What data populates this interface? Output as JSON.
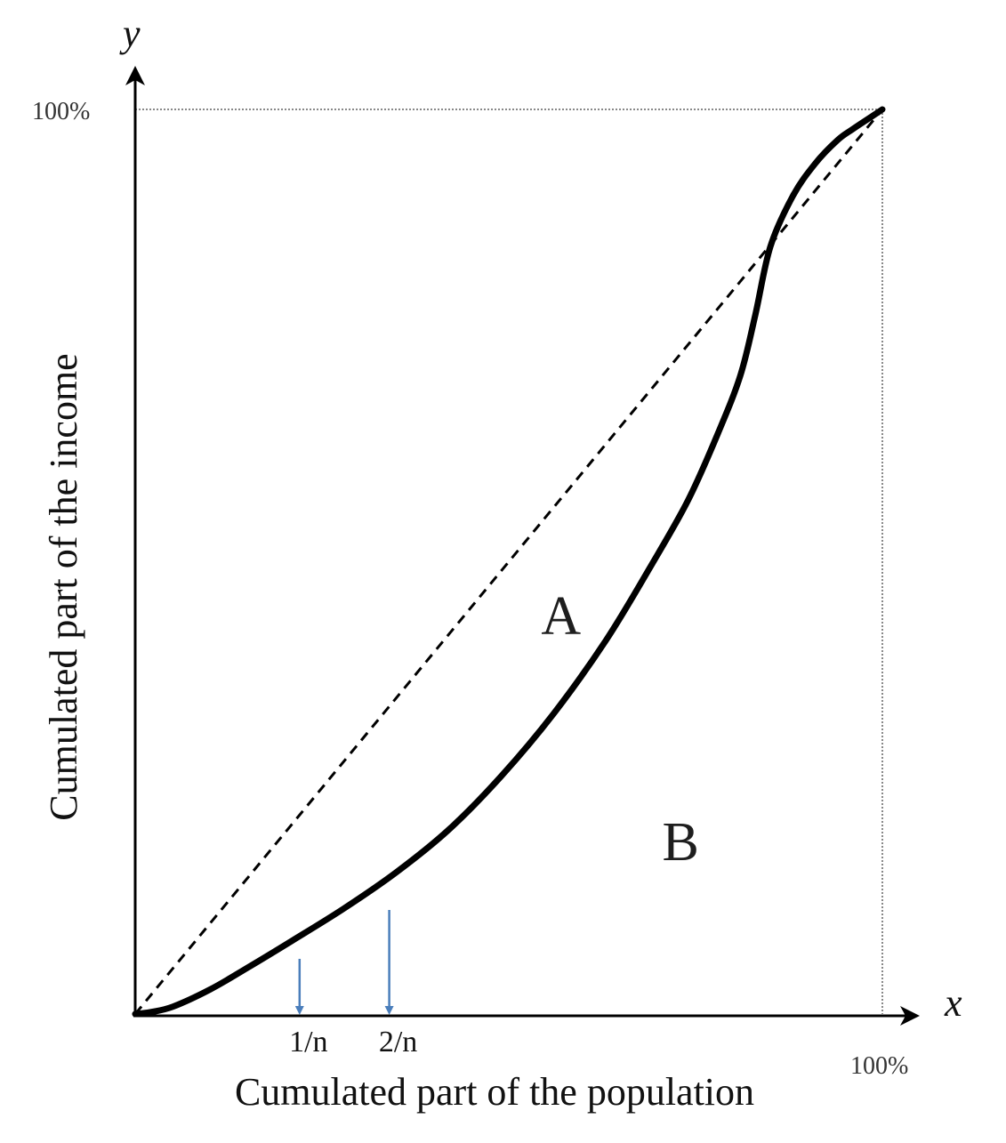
{
  "chart_data": {
    "type": "line",
    "title": "",
    "xlabel": "Cumulated part of the population",
    "ylabel": "Cumulated part of the income",
    "x_axis_symbol": "x",
    "y_axis_symbol": "y",
    "xlim": [
      0,
      100
    ],
    "ylim": [
      0,
      100
    ],
    "grid": false,
    "x_ticks": [
      {
        "x": 100,
        "label": "100%"
      }
    ],
    "y_ticks": [
      {
        "y": 100,
        "label": "100%"
      }
    ],
    "series": [
      {
        "kind": "equality-line",
        "style": "dashed",
        "x": [
          0,
          100
        ],
        "y": [
          0,
          100
        ]
      },
      {
        "kind": "lorenz-curve",
        "style": "solid",
        "x": [
          0,
          2,
          5,
          10,
          15,
          21,
          28,
          35,
          42,
          49,
          56,
          63,
          69,
          74,
          78,
          81,
          83,
          85,
          88,
          91,
          94,
          96,
          98,
          100
        ],
        "y": [
          0,
          0.2,
          0.8,
          2.7,
          5.1,
          8.1,
          11.7,
          15.7,
          20.4,
          26.3,
          33.2,
          41.3,
          49.5,
          56.8,
          64.2,
          70.6,
          77.3,
          84.8,
          90.4,
          94.0,
          96.6,
          97.8,
          98.9,
          100
        ]
      }
    ],
    "x_markers": [
      {
        "x": 22,
        "y": 6.1,
        "label": "1/n",
        "color": "#4a7ebb"
      },
      {
        "x": 34,
        "y": 11.5,
        "label": "2/n",
        "color": "#4a7ebb"
      }
    ],
    "regions": [
      {
        "label": "A",
        "x": 57,
        "y": 42
      },
      {
        "label": "B",
        "x": 73,
        "y": 17
      }
    ],
    "colors": {
      "curve": "#000000",
      "axes": "#000000",
      "guide": "#888888",
      "marker": "#4a7ebb"
    }
  }
}
